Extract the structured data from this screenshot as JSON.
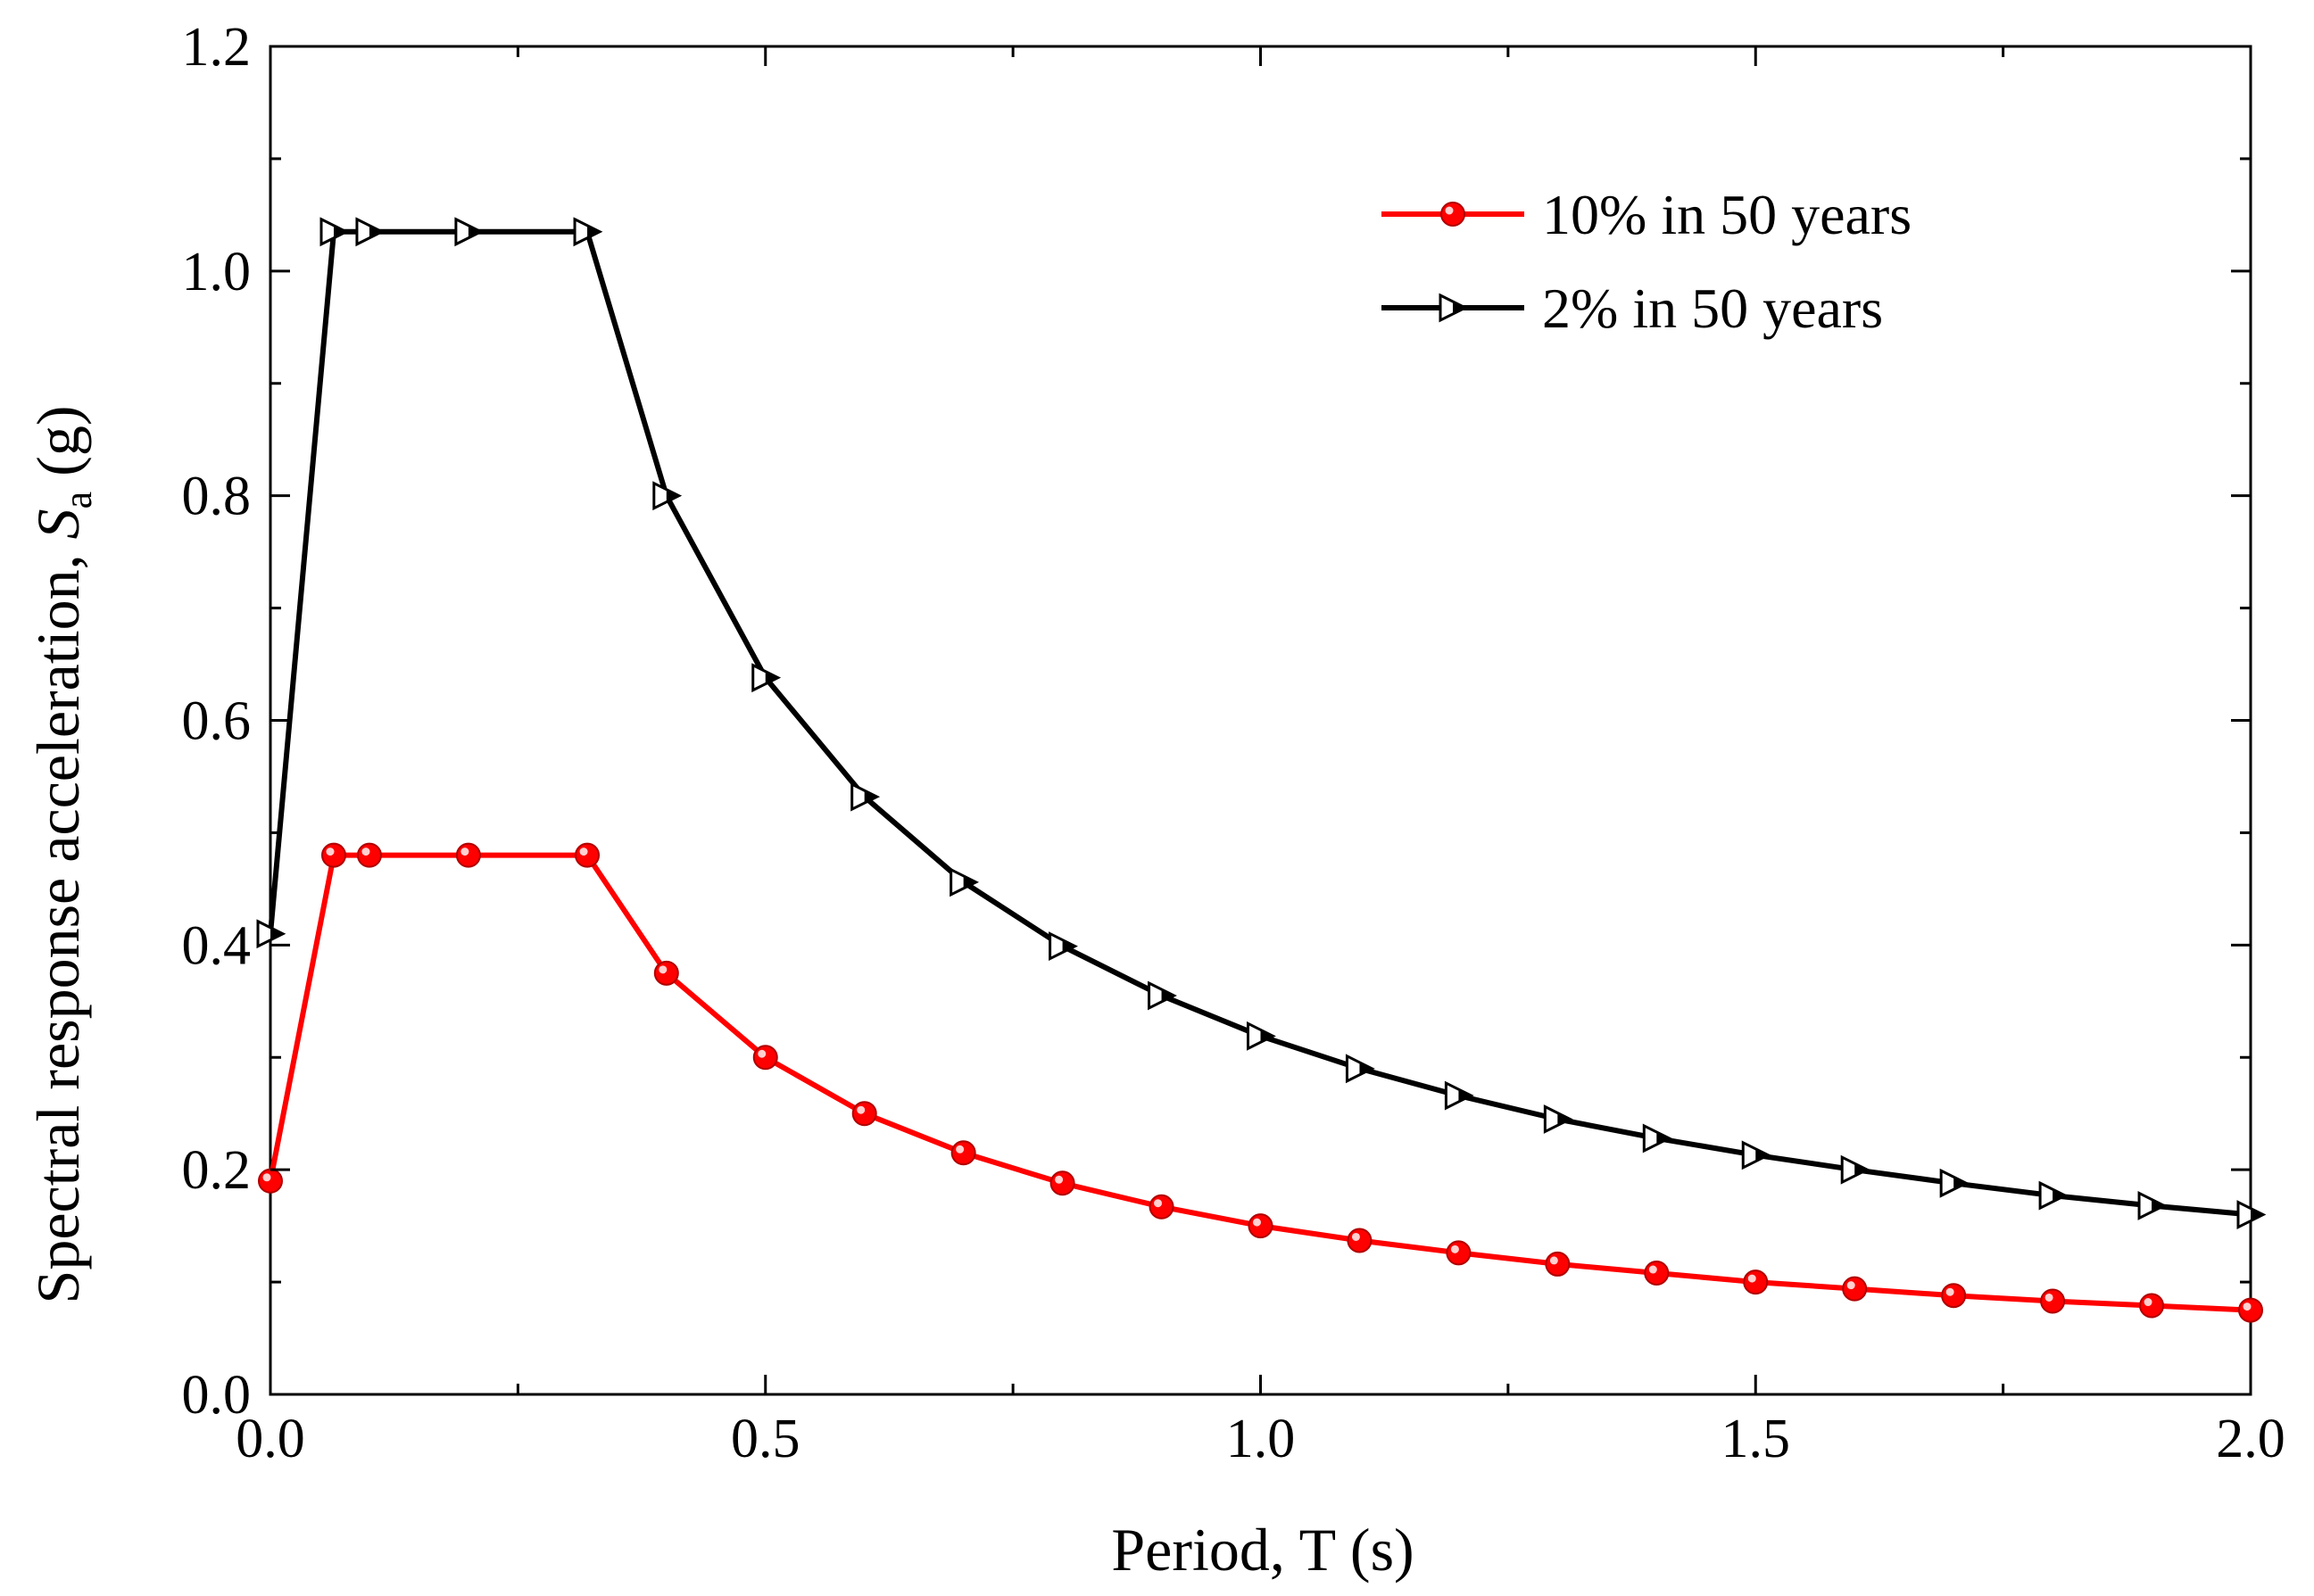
{
  "chart_data": {
    "type": "line",
    "title": "",
    "xlabel": "Period, T (s)",
    "ylabel": {
      "main": "Spectral response  acceleration, ",
      "symbol": "S",
      "subscript": "a",
      "unit": " (g)"
    },
    "xlim": [
      0.0,
      2.0
    ],
    "ylim": [
      0.0,
      1.2
    ],
    "xticks": [
      0.0,
      0.5,
      1.0,
      1.5,
      2.0
    ],
    "xtick_labels": [
      "0.0",
      "0.5",
      "1.0",
      "1.5",
      "2.0"
    ],
    "yticks": [
      0.0,
      0.2,
      0.4,
      0.6,
      0.8,
      1.0,
      1.2
    ],
    "ytick_labels": [
      "0.0",
      "0.2",
      "0.4",
      "0.6",
      "0.8",
      "1.0",
      "1.2"
    ],
    "grid": false,
    "legend_position": "top-right",
    "series": [
      {
        "name": "10% in 50 years",
        "color": "#ff0000",
        "marker": "circle",
        "x": [
          0.0,
          0.064,
          0.1,
          0.2,
          0.32,
          0.4,
          0.5,
          0.6,
          0.7,
          0.8,
          0.9,
          1.0,
          1.1,
          1.2,
          1.3,
          1.4,
          1.5,
          1.6,
          1.7,
          1.8,
          1.9,
          2.0
        ],
        "y": [
          0.19,
          0.48,
          0.48,
          0.48,
          0.48,
          0.375,
          0.3,
          0.25,
          0.215,
          0.188,
          0.167,
          0.15,
          0.137,
          0.126,
          0.116,
          0.108,
          0.1,
          0.094,
          0.088,
          0.083,
          0.079,
          0.075
        ]
      },
      {
        "name": "2% in 50 years",
        "color": "#000000",
        "marker": "triangle-right",
        "x": [
          0.0,
          0.064,
          0.1,
          0.2,
          0.32,
          0.4,
          0.5,
          0.6,
          0.7,
          0.8,
          0.9,
          1.0,
          1.1,
          1.2,
          1.3,
          1.4,
          1.5,
          1.6,
          1.7,
          1.8,
          1.9,
          2.0
        ],
        "y": [
          0.41,
          1.035,
          1.035,
          1.035,
          1.035,
          0.8,
          0.638,
          0.532,
          0.456,
          0.399,
          0.355,
          0.319,
          0.29,
          0.266,
          0.245,
          0.228,
          0.213,
          0.2,
          0.188,
          0.177,
          0.168,
          0.16
        ]
      }
    ]
  }
}
